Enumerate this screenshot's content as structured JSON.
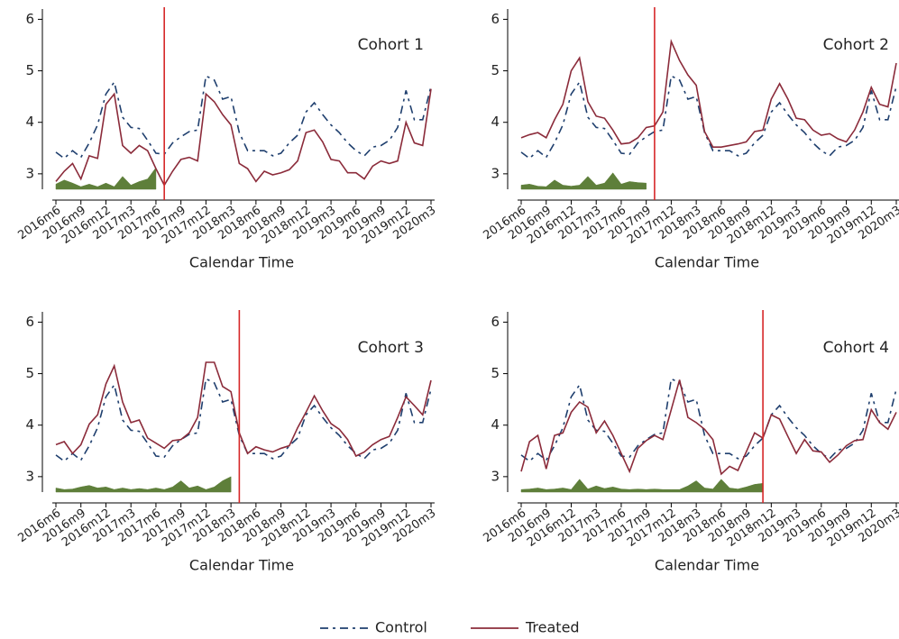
{
  "chart_data": [
    {
      "type": "line",
      "title": "Cohort 1",
      "xlabel": "Calendar Time",
      "categories": [
        "2016m6",
        null,
        null,
        "2016m9",
        null,
        null,
        "2016m12",
        null,
        null,
        "2017m3",
        null,
        null,
        "2017m6",
        null,
        null,
        "2017m9",
        null,
        null,
        "2017m12",
        null,
        null,
        "2018m3",
        null,
        null,
        "2018m6",
        null,
        null,
        "2018m9",
        null,
        null,
        "2018m12",
        null,
        null,
        "2019m3",
        null,
        null,
        "2019m6",
        null,
        null,
        "2019m9",
        null,
        null,
        "2019m12",
        null,
        null,
        "2020m3"
      ],
      "series": [
        {
          "values": [
            3.42,
            3.3,
            3.45,
            3.32,
            3.6,
            3.95,
            4.55,
            4.78,
            4.1,
            3.9,
            3.88,
            3.65,
            3.4,
            3.38,
            3.6,
            3.72,
            3.82,
            3.85,
            4.9,
            4.82,
            4.45,
            4.5,
            3.8,
            3.45,
            3.45,
            3.45,
            3.35,
            3.4,
            3.6,
            3.75,
            4.2,
            4.38,
            4.15,
            3.95,
            3.8,
            3.6,
            3.45,
            3.35,
            3.52,
            3.55,
            3.65,
            3.9,
            4.62,
            4.05,
            4.05,
            4.7
          ]
        },
        {
          "values": [
            2.85,
            3.05,
            3.2,
            2.9,
            3.35,
            3.3,
            4.35,
            4.55,
            3.55,
            3.4,
            3.55,
            3.45,
            3.1,
            2.78,
            3.05,
            3.28,
            3.32,
            3.25,
            4.55,
            4.4,
            4.15,
            3.95,
            3.2,
            3.1,
            2.85,
            3.05,
            2.98,
            3.02,
            3.08,
            3.25,
            3.8,
            3.85,
            3.62,
            3.28,
            3.25,
            3.02,
            3.02,
            2.9,
            3.15,
            3.25,
            3.2,
            3.25,
            4.0,
            3.6,
            3.55,
            4.65
          ]
        }
      ],
      "shaded": {
        "color": "#5e7f3a",
        "values": [
          2.8,
          2.88,
          2.82,
          2.75,
          2.8,
          2.75,
          2.82,
          2.75,
          2.95,
          2.78,
          2.85,
          2.9,
          3.12,
          null,
          null,
          null,
          null,
          null,
          null,
          null,
          null,
          null,
          null,
          null,
          null,
          null,
          null,
          null,
          null,
          null,
          null,
          null,
          null,
          null,
          null,
          null,
          null,
          null,
          null,
          null,
          null,
          null,
          null,
          null,
          null,
          null
        ]
      },
      "event_index": 13,
      "event_color": "#d62728",
      "ylim": [
        2.7,
        6.2
      ],
      "yticks": [
        3,
        4,
        5,
        6
      ]
    },
    {
      "type": "line",
      "title": "Cohort 2",
      "xlabel": "Calendar Time",
      "categories": [
        "2016m6",
        null,
        null,
        "2016m9",
        null,
        null,
        "2016m12",
        null,
        null,
        "2017m3",
        null,
        null,
        "2017m6",
        null,
        null,
        "2017m9",
        null,
        null,
        "2017m12",
        null,
        null,
        "2018m3",
        null,
        null,
        "2018m6",
        null,
        null,
        "2018m9",
        null,
        null,
        "2018m12",
        null,
        null,
        "2019m3",
        null,
        null,
        "2019m6",
        null,
        null,
        "2019m9",
        null,
        null,
        "2019m12",
        null,
        null,
        "2020m3"
      ],
      "series": [
        {
          "values": [
            3.42,
            3.3,
            3.45,
            3.32,
            3.6,
            3.95,
            4.55,
            4.78,
            4.1,
            3.9,
            3.88,
            3.65,
            3.4,
            3.38,
            3.6,
            3.72,
            3.82,
            3.85,
            4.9,
            4.82,
            4.45,
            4.5,
            3.8,
            3.45,
            3.45,
            3.45,
            3.35,
            3.4,
            3.6,
            3.75,
            4.2,
            4.38,
            4.15,
            3.95,
            3.8,
            3.6,
            3.45,
            3.35,
            3.52,
            3.55,
            3.65,
            3.9,
            4.62,
            4.05,
            4.05,
            4.7
          ]
        },
        {
          "values": [
            3.7,
            3.76,
            3.8,
            3.7,
            4.05,
            4.35,
            5.0,
            5.25,
            4.4,
            4.12,
            4.08,
            3.85,
            3.58,
            3.6,
            3.7,
            3.9,
            3.93,
            4.2,
            5.57,
            5.2,
            4.92,
            4.72,
            3.82,
            3.52,
            3.52,
            3.55,
            3.58,
            3.62,
            3.82,
            3.85,
            4.45,
            4.75,
            4.45,
            4.08,
            4.05,
            3.85,
            3.75,
            3.78,
            3.68,
            3.62,
            3.85,
            4.2,
            4.68,
            4.35,
            4.3,
            5.15
          ]
        }
      ],
      "shaded": {
        "color": "#5e7f3a",
        "values": [
          2.78,
          2.8,
          2.76,
          2.75,
          2.88,
          2.78,
          2.76,
          2.78,
          2.95,
          2.78,
          2.82,
          3.02,
          2.8,
          2.85,
          2.83,
          2.82,
          null,
          null,
          null,
          null,
          null,
          null,
          null,
          null,
          null,
          null,
          null,
          null,
          null,
          null,
          null,
          null,
          null,
          null,
          null,
          null,
          null,
          null,
          null,
          null,
          null,
          null,
          null,
          null,
          null,
          null
        ]
      },
      "event_index": 16,
      "event_color": "#d62728",
      "ylim": [
        2.7,
        6.2
      ],
      "yticks": [
        3,
        4,
        5,
        6
      ]
    },
    {
      "type": "line",
      "title": "Cohort 3",
      "xlabel": "Calendar Time",
      "categories": [
        "2016m6",
        null,
        null,
        "2016m9",
        null,
        null,
        "2016m12",
        null,
        null,
        "2017m3",
        null,
        null,
        "2017m6",
        null,
        null,
        "2017m9",
        null,
        null,
        "2017m12",
        null,
        null,
        "2018m3",
        null,
        null,
        "2018m6",
        null,
        null,
        "2018m9",
        null,
        null,
        "2018m12",
        null,
        null,
        "2019m3",
        null,
        null,
        "2019m6",
        null,
        null,
        "2019m9",
        null,
        null,
        "2019m12",
        null,
        null,
        "2020m3"
      ],
      "series": [
        {
          "values": [
            3.42,
            3.3,
            3.45,
            3.32,
            3.6,
            3.95,
            4.55,
            4.78,
            4.1,
            3.9,
            3.88,
            3.65,
            3.4,
            3.38,
            3.6,
            3.72,
            3.82,
            3.85,
            4.9,
            4.82,
            4.45,
            4.5,
            3.8,
            3.45,
            3.45,
            3.45,
            3.35,
            3.4,
            3.6,
            3.75,
            4.2,
            4.38,
            4.15,
            3.95,
            3.8,
            3.6,
            3.45,
            3.35,
            3.52,
            3.55,
            3.65,
            3.9,
            4.62,
            4.05,
            4.05,
            4.7
          ]
        },
        {
          "values": [
            3.62,
            3.68,
            3.45,
            3.62,
            4.02,
            4.2,
            4.8,
            5.15,
            4.45,
            4.05,
            4.1,
            3.75,
            3.65,
            3.55,
            3.7,
            3.72,
            3.85,
            4.15,
            5.22,
            5.22,
            4.75,
            4.65,
            3.85,
            3.45,
            3.58,
            3.52,
            3.48,
            3.55,
            3.6,
            3.95,
            4.25,
            4.57,
            4.28,
            4.03,
            3.92,
            3.72,
            3.4,
            3.48,
            3.62,
            3.72,
            3.78,
            4.15,
            4.55,
            4.38,
            4.2,
            4.87
          ]
        }
      ],
      "shaded": {
        "color": "#5e7f3a",
        "values": [
          2.78,
          2.75,
          2.76,
          2.8,
          2.83,
          2.78,
          2.8,
          2.75,
          2.78,
          2.75,
          2.77,
          2.75,
          2.78,
          2.75,
          2.8,
          2.92,
          2.78,
          2.82,
          2.75,
          2.8,
          2.92,
          3.0,
          null,
          null,
          null,
          null,
          null,
          null,
          null,
          null,
          null,
          null,
          null,
          null,
          null,
          null,
          null,
          null,
          null,
          null,
          null,
          null,
          null,
          null,
          null,
          null
        ]
      },
      "event_index": 22,
      "event_color": "#d62728",
      "ylim": [
        2.7,
        6.2
      ],
      "yticks": [
        3,
        4,
        5,
        6
      ]
    },
    {
      "type": "line",
      "title": "Cohort 4",
      "xlabel": "Calendar Time",
      "categories": [
        "2016m6",
        null,
        null,
        "2016m9",
        null,
        null,
        "2016m12",
        null,
        null,
        "2017m3",
        null,
        null,
        "2017m6",
        null,
        null,
        "2017m9",
        null,
        null,
        "2017m12",
        null,
        null,
        "2018m3",
        null,
        null,
        "2018m6",
        null,
        null,
        "2018m9",
        null,
        null,
        "2018m12",
        null,
        null,
        "2019m3",
        null,
        null,
        "2019m6",
        null,
        null,
        "2019m9",
        null,
        null,
        "2019m12",
        null,
        null,
        "2020m3"
      ],
      "series": [
        {
          "values": [
            3.42,
            3.3,
            3.45,
            3.32,
            3.6,
            3.95,
            4.55,
            4.78,
            4.1,
            3.9,
            3.88,
            3.65,
            3.4,
            3.38,
            3.6,
            3.72,
            3.82,
            3.85,
            4.9,
            4.82,
            4.45,
            4.5,
            3.8,
            3.45,
            3.45,
            3.45,
            3.35,
            3.4,
            3.6,
            3.75,
            4.2,
            4.38,
            4.15,
            3.95,
            3.8,
            3.6,
            3.45,
            3.35,
            3.52,
            3.55,
            3.65,
            3.9,
            4.62,
            4.05,
            4.05,
            4.7
          ]
        },
        {
          "values": [
            3.1,
            3.68,
            3.8,
            3.15,
            3.8,
            3.85,
            4.25,
            4.45,
            4.35,
            3.85,
            4.08,
            3.8,
            3.45,
            3.1,
            3.55,
            3.7,
            3.8,
            3.72,
            4.3,
            4.88,
            4.15,
            4.05,
            3.92,
            3.72,
            3.05,
            3.2,
            3.12,
            3.48,
            3.85,
            3.75,
            4.2,
            4.12,
            3.78,
            3.45,
            3.72,
            3.5,
            3.48,
            3.28,
            3.42,
            3.6,
            3.7,
            3.72,
            4.3,
            4.05,
            3.92,
            4.25
          ]
        }
      ],
      "shaded": {
        "color": "#5e7f3a",
        "values": [
          2.75,
          2.76,
          2.78,
          2.75,
          2.76,
          2.78,
          2.75,
          2.95,
          2.76,
          2.82,
          2.77,
          2.8,
          2.76,
          2.75,
          2.76,
          2.75,
          2.76,
          2.75,
          2.75,
          2.75,
          2.82,
          2.92,
          2.78,
          2.76,
          2.95,
          2.78,
          2.76,
          2.8,
          2.85,
          2.87,
          null,
          null,
          null,
          null,
          null,
          null,
          null,
          null,
          null,
          null,
          null,
          null,
          null,
          null,
          null,
          null
        ]
      },
      "event_index": 29,
      "event_color": "#d62728",
      "ylim": [
        2.7,
        6.2
      ],
      "yticks": [
        3,
        4,
        5,
        6
      ]
    }
  ],
  "legend": [
    {
      "name": "Control",
      "color": "#1f3f6e",
      "dash": "9 5 3 5"
    },
    {
      "name": "Treated",
      "color": "#8b2b3a",
      "dash": "none"
    }
  ]
}
